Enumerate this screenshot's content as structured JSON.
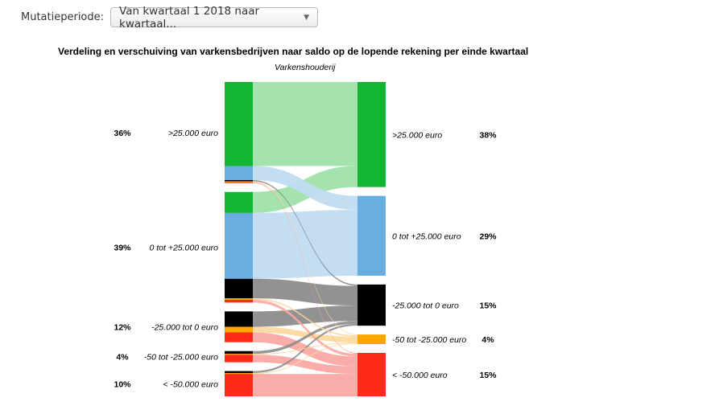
{
  "filter": {
    "label": "Mutatieperiode:",
    "selected": "Van kwartaal 1 2018 naar kwartaal...",
    "arrow_icon": "triangle-down"
  },
  "chart_data": {
    "type": "sankey",
    "title": "Verdeling en verschuiving van varkensbedrijven naar saldo op de lopende rekening per einde kwartaal",
    "subtitle": "Varkenshouderij",
    "nodes": [
      {
        "name": ">25.000 euro",
        "left_pct": "36%",
        "right_pct": "38%",
        "color": "#13b532",
        "link_color": "#9fe2aa"
      },
      {
        "name": "0 tot +25.000 euro",
        "left_pct": "39%",
        "right_pct": "29%",
        "color": "#6aaee0",
        "link_color": "#c0dbf1"
      },
      {
        "name": "-25.000 tot 0 euro",
        "left_pct": "12%",
        "right_pct": "15%",
        "color": "#000000",
        "link_color": "#8c8c8c"
      },
      {
        "name": "-50 tot -25.000 euro",
        "left_pct": "4%",
        "right_pct": "4%",
        "color": "#ffa500",
        "link_color": "#fcd9a0"
      },
      {
        "name": "< -50.000 euro",
        "left_pct": "10%",
        "right_pct": "15%",
        "color": "#ff2a1a",
        "link_color": "#faa9a3"
      }
    ],
    "flows": [
      [
        30,
        5,
        0.5,
        0.3,
        0.3
      ],
      [
        7.5,
        23.5,
        7,
        0.5,
        1
      ],
      [
        0,
        0,
        5.5,
        2,
        3.5
      ],
      [
        0,
        0,
        1,
        0.3,
        2.7
      ],
      [
        0,
        0,
        0.7,
        0.3,
        8
      ]
    ]
  }
}
